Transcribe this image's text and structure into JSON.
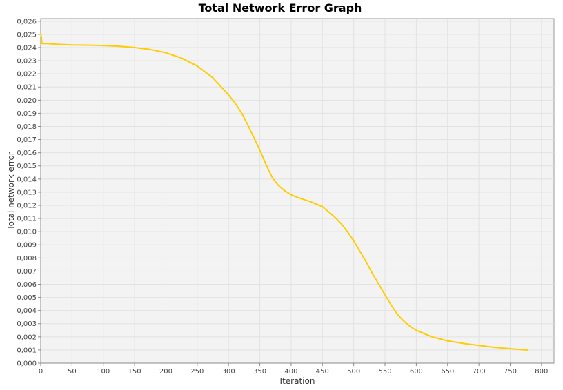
{
  "chart_data": {
    "type": "line",
    "title": "Total Network Error Graph",
    "xlabel": "Iteration",
    "ylabel": "Total network error",
    "xlim": [
      0,
      820
    ],
    "ylim": [
      0,
      0.0262
    ],
    "x_ticks": [
      0,
      50,
      100,
      150,
      200,
      250,
      300,
      350,
      400,
      450,
      500,
      550,
      600,
      650,
      700,
      750,
      800
    ],
    "x_tick_labels": [
      "0",
      "50",
      "100",
      "150",
      "200",
      "250",
      "300",
      "350",
      "400",
      "450",
      "500",
      "550",
      "600",
      "650",
      "700",
      "750",
      "800"
    ],
    "y_ticks": [
      0,
      0.001,
      0.002,
      0.003,
      0.004,
      0.005,
      0.006,
      0.007,
      0.008,
      0.009,
      0.01,
      0.011,
      0.012,
      0.013,
      0.014,
      0.015,
      0.016,
      0.017,
      0.018,
      0.019,
      0.02,
      0.021,
      0.022,
      0.023,
      0.024,
      0.025,
      0.026
    ],
    "y_tick_labels": [
      "0,000",
      "0,001",
      "0,002",
      "0,003",
      "0,004",
      "0,005",
      "0,006",
      "0,007",
      "0,008",
      "0,009",
      "0,010",
      "0,011",
      "0,012",
      "0,013",
      "0,014",
      "0,015",
      "0,016",
      "0,017",
      "0,018",
      "0,019",
      "0,020",
      "0,021",
      "0,022",
      "0,023",
      "0,024",
      "0,025",
      "0,026"
    ],
    "grid": true,
    "legend": "none",
    "colors": {
      "line": "#ffcc00",
      "plot_background": "#f3f3f3",
      "gridline": "#e2e2e2",
      "axis": "#888888"
    },
    "series": [
      {
        "x": [
          0,
          1,
          2,
          5,
          10,
          25,
          50,
          75,
          100,
          125,
          150,
          175,
          200,
          225,
          250,
          275,
          300,
          310,
          320,
          330,
          340,
          350,
          360,
          370,
          380,
          390,
          400,
          410,
          420,
          430,
          440,
          450,
          460,
          470,
          480,
          490,
          500,
          510,
          520,
          530,
          540,
          550,
          560,
          570,
          580,
          590,
          600,
          625,
          650,
          675,
          700,
          725,
          750,
          775,
          778
        ],
        "y": [
          0.0251,
          0.0248,
          0.0243,
          0.0243,
          0.0243,
          0.02425,
          0.0242,
          0.02418,
          0.02415,
          0.0241,
          0.024,
          0.02385,
          0.0236,
          0.0232,
          0.0226,
          0.0217,
          0.0204,
          0.0198,
          0.0191,
          0.0182,
          0.0172,
          0.0162,
          0.0151,
          0.0141,
          0.0135,
          0.0131,
          0.0128,
          0.0126,
          0.01245,
          0.0123,
          0.0121,
          0.0119,
          0.0115,
          0.0111,
          0.0106,
          0.01,
          0.0093,
          0.0085,
          0.0077,
          0.0068,
          0.006,
          0.0052,
          0.0044,
          0.0037,
          0.0032,
          0.0028,
          0.0025,
          0.002,
          0.0017,
          0.0015,
          0.00135,
          0.0012,
          0.0011,
          0.001,
          0.001
        ]
      }
    ]
  }
}
